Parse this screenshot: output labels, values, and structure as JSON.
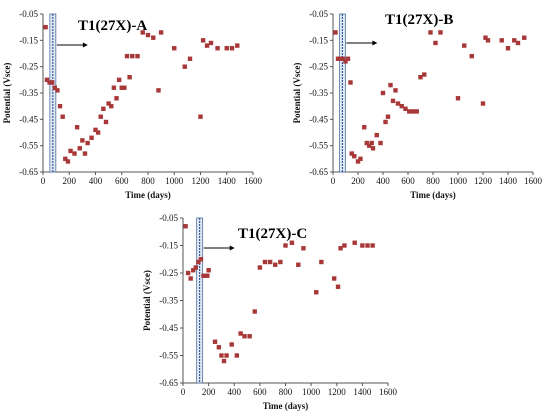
{
  "chart_data": [
    {
      "type": "scatter",
      "title": "T1(27X)-A",
      "xlabel": "Time (days)",
      "ylabel": "Potential (Vsce)",
      "xlim": [
        0,
        1600
      ],
      "ylim": [
        -0.65,
        -0.05
      ],
      "xticks": [
        "0",
        "200",
        "400",
        "600",
        "800",
        "1000",
        "1200",
        "1400",
        "1600"
      ],
      "yticks": [
        "-0.05",
        "-0.15",
        "-0.25",
        "-0.35",
        "-0.45",
        "-0.55",
        "-0.65"
      ],
      "marker_color": "#a83838",
      "vline_x": 75,
      "points": [
        [
          20,
          -0.1
        ],
        [
          30,
          -0.3
        ],
        [
          50,
          -0.31
        ],
        [
          70,
          -0.31
        ],
        [
          90,
          -0.33
        ],
        [
          110,
          -0.34
        ],
        [
          130,
          -0.4
        ],
        [
          150,
          -0.44
        ],
        [
          170,
          -0.6
        ],
        [
          190,
          -0.61
        ],
        [
          210,
          -0.57
        ],
        [
          240,
          -0.58
        ],
        [
          260,
          -0.48
        ],
        [
          280,
          -0.56
        ],
        [
          300,
          -0.53
        ],
        [
          320,
          -0.58
        ],
        [
          340,
          -0.54
        ],
        [
          370,
          -0.52
        ],
        [
          400,
          -0.49
        ],
        [
          420,
          -0.5
        ],
        [
          440,
          -0.44
        ],
        [
          460,
          -0.41
        ],
        [
          480,
          -0.46
        ],
        [
          500,
          -0.39
        ],
        [
          520,
          -0.4
        ],
        [
          540,
          -0.33
        ],
        [
          560,
          -0.37
        ],
        [
          580,
          -0.3
        ],
        [
          600,
          -0.33
        ],
        [
          620,
          -0.33
        ],
        [
          640,
          -0.21
        ],
        [
          660,
          -0.29
        ],
        [
          680,
          -0.21
        ],
        [
          720,
          -0.21
        ],
        [
          760,
          -0.12
        ],
        [
          800,
          -0.13
        ],
        [
          840,
          -0.14
        ],
        [
          880,
          -0.34
        ],
        [
          900,
          -0.12
        ],
        [
          1000,
          -0.18
        ],
        [
          1080,
          -0.25
        ],
        [
          1120,
          -0.22
        ],
        [
          1200,
          -0.44
        ],
        [
          1220,
          -0.15
        ],
        [
          1250,
          -0.17
        ],
        [
          1280,
          -0.16
        ],
        [
          1330,
          -0.18
        ],
        [
          1400,
          -0.18
        ],
        [
          1440,
          -0.18
        ],
        [
          1480,
          -0.17
        ]
      ]
    },
    {
      "type": "scatter",
      "title": "T1(27X)-B",
      "xlabel": "Time (days)",
      "ylabel": "Potential (Vsce)",
      "xlim": [
        0,
        1600
      ],
      "ylim": [
        -0.65,
        -0.05
      ],
      "xticks": [
        "0",
        "200",
        "400",
        "600",
        "800",
        "1000",
        "1200",
        "1400",
        "1600"
      ],
      "yticks": [
        "-0.05",
        "-0.15",
        "-0.25",
        "-0.35",
        "-0.45",
        "-0.55",
        "-0.65"
      ],
      "marker_color": "#a83838",
      "vline_x": 75,
      "points": [
        [
          20,
          -0.12
        ],
        [
          40,
          -0.22
        ],
        [
          60,
          -0.22
        ],
        [
          80,
          -0.22
        ],
        [
          100,
          -0.23
        ],
        [
          120,
          -0.22
        ],
        [
          140,
          -0.31
        ],
        [
          150,
          -0.58
        ],
        [
          170,
          -0.59
        ],
        [
          200,
          -0.61
        ],
        [
          220,
          -0.6
        ],
        [
          250,
          -0.48
        ],
        [
          270,
          -0.54
        ],
        [
          290,
          -0.55
        ],
        [
          310,
          -0.54
        ],
        [
          320,
          -0.56
        ],
        [
          350,
          -0.51
        ],
        [
          380,
          -0.54
        ],
        [
          400,
          -0.35
        ],
        [
          420,
          -0.46
        ],
        [
          440,
          -0.44
        ],
        [
          460,
          -0.32
        ],
        [
          480,
          -0.38
        ],
        [
          500,
          -0.34
        ],
        [
          520,
          -0.39
        ],
        [
          550,
          -0.4
        ],
        [
          580,
          -0.41
        ],
        [
          610,
          -0.42
        ],
        [
          640,
          -0.42
        ],
        [
          670,
          -0.42
        ],
        [
          700,
          -0.29
        ],
        [
          730,
          -0.28
        ],
        [
          780,
          -0.12
        ],
        [
          820,
          -0.16
        ],
        [
          860,
          -0.12
        ],
        [
          1000,
          -0.37
        ],
        [
          1050,
          -0.17
        ],
        [
          1110,
          -0.21
        ],
        [
          1200,
          -0.39
        ],
        [
          1220,
          -0.14
        ],
        [
          1240,
          -0.15
        ],
        [
          1350,
          -0.15
        ],
        [
          1400,
          -0.18
        ],
        [
          1450,
          -0.15
        ],
        [
          1480,
          -0.16
        ],
        [
          1530,
          -0.14
        ]
      ]
    },
    {
      "type": "scatter",
      "title": "T1(27X)-C",
      "xlabel": "Time (days)",
      "ylabel": "Potential (Vsce)",
      "xlim": [
        0,
        1600
      ],
      "ylim": [
        -0.65,
        -0.05
      ],
      "xticks": [
        "0",
        "200",
        "400",
        "600",
        "800",
        "1000",
        "1200",
        "1400",
        "1600"
      ],
      "yticks": [
        "-0.05",
        "-0.15",
        "-0.25",
        "-0.35",
        "-0.45",
        "-0.55",
        "-0.65"
      ],
      "marker_color": "#a83838",
      "vline_x": 130,
      "points": [
        [
          20,
          -0.08
        ],
        [
          40,
          -0.25
        ],
        [
          60,
          -0.27
        ],
        [
          80,
          -0.24
        ],
        [
          100,
          -0.23
        ],
        [
          120,
          -0.21
        ],
        [
          140,
          -0.2
        ],
        [
          160,
          -0.26
        ],
        [
          190,
          -0.26
        ],
        [
          200,
          -0.24
        ],
        [
          250,
          -0.5
        ],
        [
          280,
          -0.52
        ],
        [
          300,
          -0.55
        ],
        [
          320,
          -0.57
        ],
        [
          340,
          -0.55
        ],
        [
          380,
          -0.51
        ],
        [
          420,
          -0.55
        ],
        [
          450,
          -0.47
        ],
        [
          480,
          -0.48
        ],
        [
          520,
          -0.48
        ],
        [
          560,
          -0.39
        ],
        [
          600,
          -0.23
        ],
        [
          640,
          -0.21
        ],
        [
          680,
          -0.21
        ],
        [
          720,
          -0.22
        ],
        [
          760,
          -0.21
        ],
        [
          800,
          -0.15
        ],
        [
          850,
          -0.14
        ],
        [
          900,
          -0.22
        ],
        [
          940,
          -0.16
        ],
        [
          1040,
          -0.32
        ],
        [
          1080,
          -0.21
        ],
        [
          1180,
          -0.27
        ],
        [
          1210,
          -0.3
        ],
        [
          1230,
          -0.16
        ],
        [
          1260,
          -0.15
        ],
        [
          1340,
          -0.14
        ],
        [
          1400,
          -0.15
        ],
        [
          1440,
          -0.15
        ],
        [
          1480,
          -0.15
        ]
      ]
    }
  ]
}
